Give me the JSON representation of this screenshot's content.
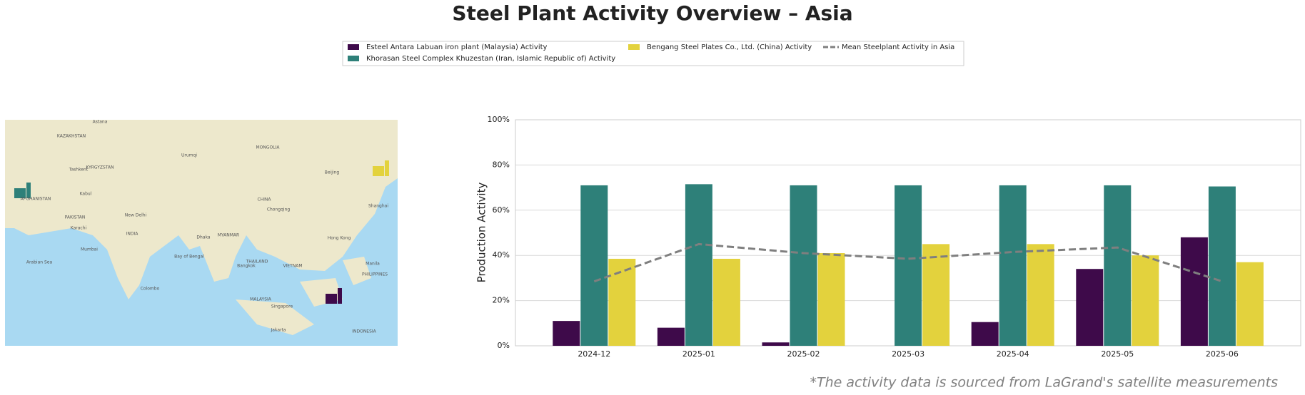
{
  "chart_data": {
    "type": "bar",
    "title": "Steel Plant Activity Overview – Asia",
    "ylabel": "Production Activity",
    "footnote": "*The activity data is sourced from LaGrand's satellite measurements",
    "categories": [
      "2024-12",
      "2025-01",
      "2025-02",
      "2025-03",
      "2025-04",
      "2025-05",
      "2025-06"
    ],
    "series": [
      {
        "name": "Esteel Antara Labuan iron plant (Malaysia) Activity",
        "color": "#3e0a4a",
        "values": [
          11,
          8,
          1.5,
          0,
          10.5,
          34,
          48
        ]
      },
      {
        "name": "Khorasan Steel Complex Khuzestan (Iran, Islamic Republic of) Activity",
        "color": "#2e8079",
        "values": [
          71,
          71.5,
          71,
          71,
          71,
          71,
          70.5
        ]
      },
      {
        "name": "Bengang Steel Plates Co., Ltd. (China) Activity",
        "color": "#e3d23d",
        "values": [
          38.5,
          38.5,
          41,
          45,
          45,
          40,
          37
        ]
      },
      {
        "name": "Mean Steelplant Activity in Asia",
        "type": "line",
        "color": "#7f7f7f",
        "values": [
          28.5,
          45,
          41,
          38.5,
          41.5,
          43.5,
          28.5
        ]
      }
    ],
    "ylim": [
      0,
      100
    ],
    "yticks": [
      {
        "value": 0,
        "label": "0%"
      },
      {
        "value": 20,
        "label": "20%"
      },
      {
        "value": 40,
        "label": "40%"
      },
      {
        "value": 60,
        "label": "60%"
      },
      {
        "value": 80,
        "label": "80%"
      },
      {
        "value": 100,
        "label": "100%"
      }
    ],
    "grid": true,
    "map_labels": [
      "KAZAKHSTAN",
      "MONGOLIA",
      "CHINA",
      "INDIA",
      "AFGHANISTAN",
      "PAKISTAN",
      "Beijing",
      "Shanghai",
      "New Delhi",
      "Bangkok",
      "Singapore",
      "Jakarta",
      "Astana",
      "Urumqi",
      "Tashkent",
      "KYRGYZSTAN",
      "MYANMAR",
      "THAILAND",
      "VIETNAM",
      "PHILIPPINES",
      "INDONESIA",
      "MALAYSIA",
      "Karachi",
      "Mumbai",
      "Dhaka",
      "Bay of Bengal",
      "Arabian Sea",
      "Colombo",
      "Manila",
      "Hong Kong",
      "Chongqing",
      "Kabul"
    ]
  }
}
